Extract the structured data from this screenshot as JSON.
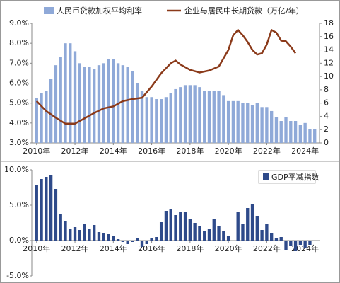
{
  "chart_data": [
    {
      "type": "combo",
      "xlim": [
        2009.75,
        2024.75
      ],
      "xticks": [
        {
          "value": 2010,
          "label": "2010年"
        },
        {
          "value": 2012,
          "label": "2012年"
        },
        {
          "value": 2014,
          "label": "2014年"
        },
        {
          "value": 2016,
          "label": "2016年"
        },
        {
          "value": 2018,
          "label": "2018年"
        },
        {
          "value": 2020,
          "label": "2020年"
        },
        {
          "value": 2022,
          "label": "2022年"
        },
        {
          "value": 2024,
          "label": "2024年"
        }
      ],
      "ylim": [
        3,
        9
      ],
      "yticks": [
        {
          "value": 3,
          "label": "3.0%"
        },
        {
          "value": 4,
          "label": "4.0%"
        },
        {
          "value": 5,
          "label": "5.0%"
        },
        {
          "value": 6,
          "label": "6.0%"
        },
        {
          "value": 7,
          "label": "7.0%"
        },
        {
          "value": 8,
          "label": "8.0%"
        },
        {
          "value": 9,
          "label": "9.0%"
        }
      ],
      "y2lim": [
        0,
        18
      ],
      "y2ticks": [
        0,
        2,
        4,
        6,
        8,
        10,
        12,
        14,
        16,
        18
      ],
      "series": [
        {
          "name": "人民币贷款加权平均利率",
          "type": "bar",
          "color": "#8fa9d8",
          "x": [
            2010,
            2010.25,
            2010.5,
            2010.75,
            2011,
            2011.25,
            2011.5,
            2011.75,
            2012,
            2012.25,
            2012.5,
            2012.75,
            2013,
            2013.25,
            2013.5,
            2013.75,
            2014,
            2014.25,
            2014.5,
            2014.75,
            2015,
            2015.25,
            2015.5,
            2015.75,
            2016,
            2016.25,
            2016.5,
            2016.75,
            2017,
            2017.25,
            2017.5,
            2017.75,
            2018,
            2018.25,
            2018.5,
            2018.75,
            2019,
            2019.25,
            2019.5,
            2019.75,
            2020,
            2020.25,
            2020.5,
            2020.75,
            2021,
            2021.25,
            2021.5,
            2021.75,
            2022,
            2022.25,
            2022.5,
            2022.75,
            2023,
            2023.25,
            2023.5,
            2023.75,
            2024,
            2024.25,
            2024.5
          ],
          "values": [
            5.25,
            5.5,
            5.6,
            6.2,
            6.9,
            7.3,
            8.0,
            8.0,
            7.6,
            7.0,
            6.8,
            6.8,
            6.7,
            6.9,
            7.0,
            7.2,
            7.2,
            7.0,
            6.9,
            6.8,
            6.6,
            6.0,
            5.6,
            5.3,
            5.3,
            5.2,
            5.2,
            5.3,
            5.5,
            5.7,
            5.8,
            5.9,
            5.9,
            5.9,
            5.8,
            5.6,
            5.6,
            5.6,
            5.6,
            5.4,
            5.1,
            5.1,
            5.1,
            5.0,
            5.0,
            4.9,
            5.0,
            4.8,
            4.8,
            4.6,
            4.3,
            4.1,
            4.3,
            4.1,
            4.1,
            3.9,
            4.0,
            3.7,
            3.7
          ]
        },
        {
          "name": "企业与居民中长期贷款（万亿/年）",
          "type": "line",
          "axis": "y2",
          "color": "#8b3a1a",
          "x": [
            2010,
            2010.5,
            2011,
            2011.5,
            2012,
            2012.5,
            2013,
            2013.5,
            2014,
            2014.5,
            2015,
            2015.5,
            2016,
            2016.5,
            2017,
            2017.25,
            2017.5,
            2018,
            2018.5,
            2019,
            2019.5,
            2020,
            2020.25,
            2020.5,
            2020.75,
            2021,
            2021.25,
            2021.5,
            2021.75,
            2022,
            2022.25,
            2022.5,
            2022.75,
            2023,
            2023.25,
            2023.5
          ],
          "values": [
            6.3,
            4.8,
            3.8,
            2.9,
            2.9,
            3.7,
            4.5,
            5.2,
            5.5,
            6.3,
            6.6,
            6.8,
            8.5,
            10.5,
            12.0,
            12.4,
            11.8,
            11.0,
            10.6,
            10.9,
            11.5,
            14.0,
            16.2,
            17.0,
            16.2,
            15.2,
            14.0,
            13.3,
            13.5,
            14.8,
            17.0,
            16.6,
            15.4,
            15.3,
            14.5,
            13.5
          ]
        }
      ]
    },
    {
      "type": "bar",
      "xlim": [
        2009.75,
        2024.75
      ],
      "xticks": [
        {
          "value": 2010,
          "label": "2010年"
        },
        {
          "value": 2012,
          "label": "2012年"
        },
        {
          "value": 2014,
          "label": "2014年"
        },
        {
          "value": 2016,
          "label": "2016年"
        },
        {
          "value": 2018,
          "label": "2018年"
        },
        {
          "value": 2020,
          "label": "2020年"
        },
        {
          "value": 2022,
          "label": "2022年"
        },
        {
          "value": 2024,
          "label": "2024年"
        }
      ],
      "ylim": [
        -5,
        10
      ],
      "yticks": [
        {
          "value": -5,
          "label": "-5.0%"
        },
        {
          "value": 0,
          "label": "0.0%"
        },
        {
          "value": 5,
          "label": "5.0%"
        },
        {
          "value": 10,
          "label": "10.0%"
        }
      ],
      "series": [
        {
          "name": "GDP平减指数",
          "type": "bar",
          "color": "#2e4a8a",
          "x": [
            2010,
            2010.25,
            2010.5,
            2010.75,
            2011,
            2011.25,
            2011.5,
            2011.75,
            2012,
            2012.25,
            2012.5,
            2012.75,
            2013,
            2013.25,
            2013.5,
            2013.75,
            2014,
            2014.25,
            2014.5,
            2014.75,
            2015,
            2015.25,
            2015.5,
            2015.75,
            2016,
            2016.25,
            2016.5,
            2016.75,
            2017,
            2017.25,
            2017.5,
            2017.75,
            2018,
            2018.25,
            2018.5,
            2018.75,
            2019,
            2019.25,
            2019.5,
            2019.75,
            2020,
            2020.25,
            2020.5,
            2020.75,
            2021,
            2021.25,
            2021.5,
            2021.75,
            2022,
            2022.25,
            2022.5,
            2022.75,
            2023,
            2023.25,
            2023.5,
            2023.75,
            2024,
            2024.25
          ],
          "values": [
            7.8,
            8.7,
            9.0,
            9.3,
            7.3,
            3.8,
            2.7,
            1.6,
            1.9,
            1.5,
            2.3,
            1.7,
            2.2,
            1.2,
            1.0,
            0.9,
            0.6,
            0.2,
            -0.2,
            -0.5,
            -0.2,
            0.4,
            -0.9,
            -0.5,
            0.4,
            0.5,
            2.6,
            4.2,
            4.5,
            3.6,
            4.1,
            4.0,
            3.0,
            2.5,
            2.0,
            1.4,
            1.6,
            3.0,
            2.0,
            1.3,
            0.6,
            -0.1,
            4.0,
            2.3,
            4.6,
            5.2,
            3.5,
            1.5,
            2.4,
            1.0,
            0.3,
            0.5,
            -1.3,
            -0.8,
            -1.5,
            -0.6,
            -1.1,
            -0.6
          ]
        }
      ]
    }
  ]
}
